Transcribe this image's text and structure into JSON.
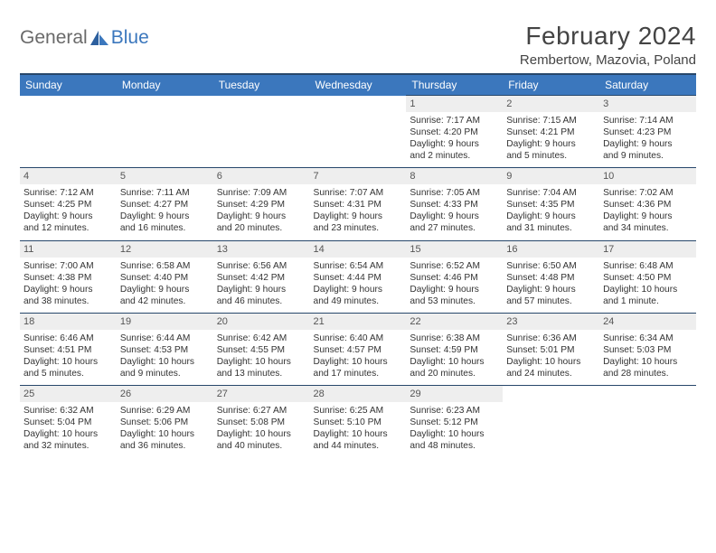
{
  "logo": {
    "text1": "General",
    "text2": "Blue"
  },
  "title": "February 2024",
  "location": "Rembertow, Mazovia, Poland",
  "colors": {
    "header_bg": "#3b77bd",
    "header_border": "#27476b",
    "daynum_bg": "#eeeeee",
    "text": "#333333"
  },
  "daysOfWeek": [
    "Sunday",
    "Monday",
    "Tuesday",
    "Wednesday",
    "Thursday",
    "Friday",
    "Saturday"
  ],
  "weeks": [
    [
      null,
      null,
      null,
      null,
      {
        "n": "1",
        "sunrise": "7:17 AM",
        "sunset": "4:20 PM",
        "dl1": "Daylight: 9 hours",
        "dl2": "and 2 minutes."
      },
      {
        "n": "2",
        "sunrise": "7:15 AM",
        "sunset": "4:21 PM",
        "dl1": "Daylight: 9 hours",
        "dl2": "and 5 minutes."
      },
      {
        "n": "3",
        "sunrise": "7:14 AM",
        "sunset": "4:23 PM",
        "dl1": "Daylight: 9 hours",
        "dl2": "and 9 minutes."
      }
    ],
    [
      {
        "n": "4",
        "sunrise": "7:12 AM",
        "sunset": "4:25 PM",
        "dl1": "Daylight: 9 hours",
        "dl2": "and 12 minutes."
      },
      {
        "n": "5",
        "sunrise": "7:11 AM",
        "sunset": "4:27 PM",
        "dl1": "Daylight: 9 hours",
        "dl2": "and 16 minutes."
      },
      {
        "n": "6",
        "sunrise": "7:09 AM",
        "sunset": "4:29 PM",
        "dl1": "Daylight: 9 hours",
        "dl2": "and 20 minutes."
      },
      {
        "n": "7",
        "sunrise": "7:07 AM",
        "sunset": "4:31 PM",
        "dl1": "Daylight: 9 hours",
        "dl2": "and 23 minutes."
      },
      {
        "n": "8",
        "sunrise": "7:05 AM",
        "sunset": "4:33 PM",
        "dl1": "Daylight: 9 hours",
        "dl2": "and 27 minutes."
      },
      {
        "n": "9",
        "sunrise": "7:04 AM",
        "sunset": "4:35 PM",
        "dl1": "Daylight: 9 hours",
        "dl2": "and 31 minutes."
      },
      {
        "n": "10",
        "sunrise": "7:02 AM",
        "sunset": "4:36 PM",
        "dl1": "Daylight: 9 hours",
        "dl2": "and 34 minutes."
      }
    ],
    [
      {
        "n": "11",
        "sunrise": "7:00 AM",
        "sunset": "4:38 PM",
        "dl1": "Daylight: 9 hours",
        "dl2": "and 38 minutes."
      },
      {
        "n": "12",
        "sunrise": "6:58 AM",
        "sunset": "4:40 PM",
        "dl1": "Daylight: 9 hours",
        "dl2": "and 42 minutes."
      },
      {
        "n": "13",
        "sunrise": "6:56 AM",
        "sunset": "4:42 PM",
        "dl1": "Daylight: 9 hours",
        "dl2": "and 46 minutes."
      },
      {
        "n": "14",
        "sunrise": "6:54 AM",
        "sunset": "4:44 PM",
        "dl1": "Daylight: 9 hours",
        "dl2": "and 49 minutes."
      },
      {
        "n": "15",
        "sunrise": "6:52 AM",
        "sunset": "4:46 PM",
        "dl1": "Daylight: 9 hours",
        "dl2": "and 53 minutes."
      },
      {
        "n": "16",
        "sunrise": "6:50 AM",
        "sunset": "4:48 PM",
        "dl1": "Daylight: 9 hours",
        "dl2": "and 57 minutes."
      },
      {
        "n": "17",
        "sunrise": "6:48 AM",
        "sunset": "4:50 PM",
        "dl1": "Daylight: 10 hours",
        "dl2": "and 1 minute."
      }
    ],
    [
      {
        "n": "18",
        "sunrise": "6:46 AM",
        "sunset": "4:51 PM",
        "dl1": "Daylight: 10 hours",
        "dl2": "and 5 minutes."
      },
      {
        "n": "19",
        "sunrise": "6:44 AM",
        "sunset": "4:53 PM",
        "dl1": "Daylight: 10 hours",
        "dl2": "and 9 minutes."
      },
      {
        "n": "20",
        "sunrise": "6:42 AM",
        "sunset": "4:55 PM",
        "dl1": "Daylight: 10 hours",
        "dl2": "and 13 minutes."
      },
      {
        "n": "21",
        "sunrise": "6:40 AM",
        "sunset": "4:57 PM",
        "dl1": "Daylight: 10 hours",
        "dl2": "and 17 minutes."
      },
      {
        "n": "22",
        "sunrise": "6:38 AM",
        "sunset": "4:59 PM",
        "dl1": "Daylight: 10 hours",
        "dl2": "and 20 minutes."
      },
      {
        "n": "23",
        "sunrise": "6:36 AM",
        "sunset": "5:01 PM",
        "dl1": "Daylight: 10 hours",
        "dl2": "and 24 minutes."
      },
      {
        "n": "24",
        "sunrise": "6:34 AM",
        "sunset": "5:03 PM",
        "dl1": "Daylight: 10 hours",
        "dl2": "and 28 minutes."
      }
    ],
    [
      {
        "n": "25",
        "sunrise": "6:32 AM",
        "sunset": "5:04 PM",
        "dl1": "Daylight: 10 hours",
        "dl2": "and 32 minutes."
      },
      {
        "n": "26",
        "sunrise": "6:29 AM",
        "sunset": "5:06 PM",
        "dl1": "Daylight: 10 hours",
        "dl2": "and 36 minutes."
      },
      {
        "n": "27",
        "sunrise": "6:27 AM",
        "sunset": "5:08 PM",
        "dl1": "Daylight: 10 hours",
        "dl2": "and 40 minutes."
      },
      {
        "n": "28",
        "sunrise": "6:25 AM",
        "sunset": "5:10 PM",
        "dl1": "Daylight: 10 hours",
        "dl2": "and 44 minutes."
      },
      {
        "n": "29",
        "sunrise": "6:23 AM",
        "sunset": "5:12 PM",
        "dl1": "Daylight: 10 hours",
        "dl2": "and 48 minutes."
      },
      null,
      null
    ]
  ],
  "labels": {
    "sunrise": "Sunrise: ",
    "sunset": "Sunset: "
  }
}
